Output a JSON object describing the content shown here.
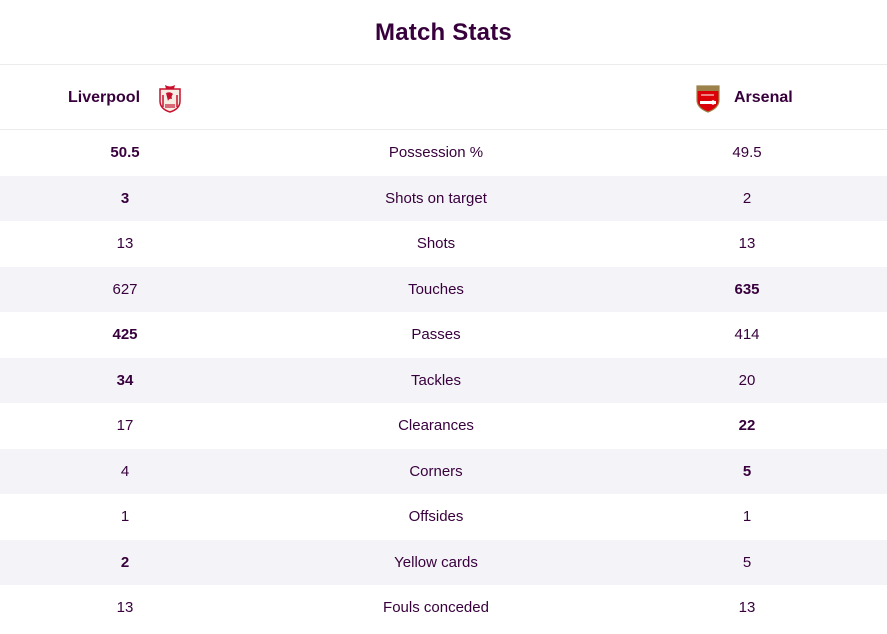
{
  "title": "Match Stats",
  "home_team": {
    "name": "Liverpool"
  },
  "away_team": {
    "name": "Arsenal"
  },
  "stats": [
    {
      "label": "Possession %",
      "home": "50.5",
      "away": "49.5",
      "leader": "home"
    },
    {
      "label": "Shots on target",
      "home": "3",
      "away": "2",
      "leader": "home"
    },
    {
      "label": "Shots",
      "home": "13",
      "away": "13",
      "leader": "none"
    },
    {
      "label": "Touches",
      "home": "627",
      "away": "635",
      "leader": "away"
    },
    {
      "label": "Passes",
      "home": "425",
      "away": "414",
      "leader": "home"
    },
    {
      "label": "Tackles",
      "home": "34",
      "away": "20",
      "leader": "home"
    },
    {
      "label": "Clearances",
      "home": "17",
      "away": "22",
      "leader": "away"
    },
    {
      "label": "Corners",
      "home": "4",
      "away": "5",
      "leader": "away"
    },
    {
      "label": "Offsides",
      "home": "1",
      "away": "1",
      "leader": "none"
    },
    {
      "label": "Yellow cards",
      "home": "2",
      "away": "5",
      "leader": "home"
    },
    {
      "label": "Fouls conceded",
      "home": "13",
      "away": "13",
      "leader": "none"
    }
  ],
  "colors": {
    "text": "#37003c",
    "row_alt": "#f4f3f7",
    "liverpool_red": "#c8102e",
    "arsenal_red": "#db0007"
  },
  "icons": {
    "home_crest": "liverpool-crest-icon",
    "away_crest": "arsenal-crest-icon"
  }
}
